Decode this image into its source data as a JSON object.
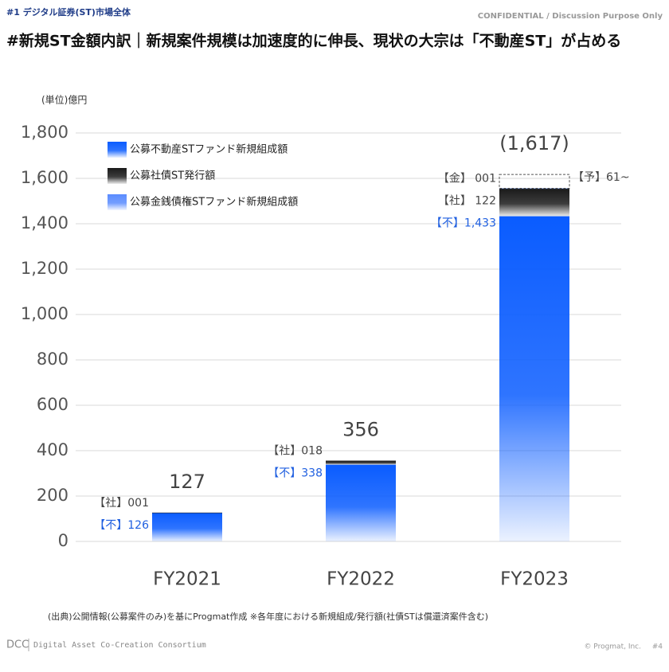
{
  "header": {
    "section": "#1 デジタル証券(ST)市場全体",
    "confidential": "CONFIDENTIAL / Discussion Purpose Only",
    "title": "#新規ST金額内訳｜新規案件規模は加速度的に伸長、現状の大宗は「不動産ST」が占める"
  },
  "chart_data": {
    "type": "stacked_bar",
    "y_unit": "(単位)億円",
    "categories": [
      "FY2021",
      "FY2022",
      "FY2023"
    ],
    "series": [
      {
        "name": "公募不動産STファンド新規組成額",
        "color": "#0a5cff",
        "label_color": "#1f5fe0",
        "values": [
          126,
          338,
          1433
        ],
        "value_labels": [
          "【不】126",
          "【不】338",
          "【不】1,433"
        ]
      },
      {
        "name": "公募社債ST発行額",
        "color": "#1a1a1a",
        "label_color": "#444444",
        "values": [
          1,
          18,
          122
        ],
        "value_labels": [
          "【社】001",
          "【社】018",
          "【社】 122"
        ]
      },
      {
        "name": "公募金銭債権STファンド新規組成額",
        "color": "#5b8cff",
        "label_color": "#444444",
        "values": [
          null,
          null,
          1
        ],
        "value_labels": [
          null,
          null,
          "【金】 001"
        ]
      }
    ],
    "projection": {
      "category": 2,
      "value": 61,
      "label": "【予】61~"
    },
    "totals": {
      "values": [
        127,
        356,
        1617
      ],
      "value_labels": [
        "127",
        "356",
        "(1,617)"
      ]
    },
    "ylim": [
      0,
      1800
    ],
    "yticks": [
      0,
      200,
      400,
      600,
      800,
      {
        "value": 1000,
        "label": "1,000"
      },
      {
        "value": 1200,
        "label": "1,200"
      },
      {
        "value": 1400,
        "label": "1,400"
      },
      {
        "value": 1600,
        "label": "1,600"
      },
      {
        "value": 1800,
        "label": "1,800"
      }
    ],
    "grid": true,
    "legend": "upper left"
  },
  "footer": {
    "source": "(出典)公開情報(公募案件のみ)を基にProgmat作成 ※各年度における新規組成/発行額(社債STは償還済案件含む)",
    "org_short": "DCC",
    "org": "Digital Asset Co-Creation Consortium",
    "copyright": "© Progmat, Inc.",
    "page": "#4"
  }
}
